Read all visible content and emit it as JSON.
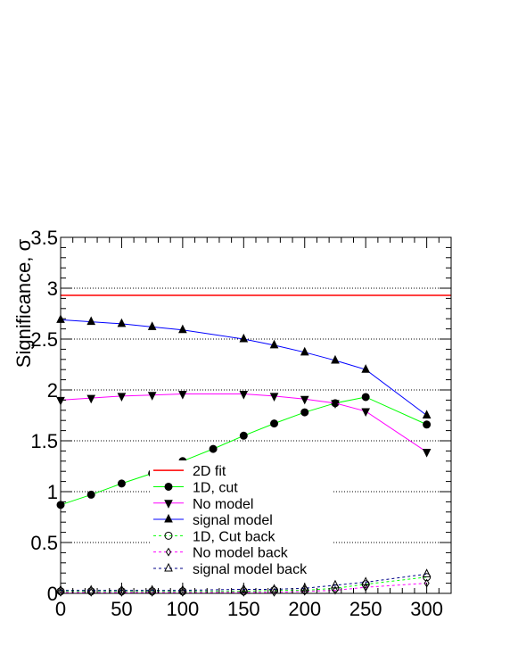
{
  "chart_data": {
    "type": "line",
    "title": "",
    "xlabel": "",
    "ylabel": "Significance, σ",
    "xlim": [
      0,
      320
    ],
    "ylim": [
      0,
      3.5
    ],
    "x_ticks": [
      0,
      50,
      100,
      150,
      200,
      250,
      300
    ],
    "y_ticks": [
      0,
      0.5,
      1,
      1.5,
      2,
      2.5,
      3,
      3.5
    ],
    "x_tick_labels": [
      "0",
      "50",
      "100",
      "150",
      "200",
      "250",
      "300"
    ],
    "y_tick_labels": [
      "0",
      "0.5",
      "1",
      "1.5",
      "2",
      "2.5",
      "3",
      "3.5"
    ],
    "grid": "horizontal dotted",
    "legend_position": "bottom-center",
    "series": [
      {
        "name": "2D fit",
        "color": "#ff0000",
        "style": "solid",
        "marker": "none",
        "x": [
          0,
          320
        ],
        "y": [
          2.93,
          2.93
        ]
      },
      {
        "name": "1D, cut",
        "color": "#00ff00",
        "style": "solid",
        "marker": "filled-circle",
        "x": [
          0,
          25,
          50,
          75,
          100,
          125,
          150,
          175,
          200,
          225,
          250,
          300
        ],
        "y": [
          0.87,
          0.97,
          1.08,
          1.18,
          1.3,
          1.42,
          1.55,
          1.67,
          1.78,
          1.87,
          1.93,
          1.66
        ]
      },
      {
        "name": "No model",
        "color": "#ff00ff",
        "style": "solid",
        "marker": "filled-triangle-down",
        "x": [
          0,
          25,
          50,
          75,
          100,
          150,
          175,
          200,
          225,
          250,
          300
        ],
        "y": [
          1.9,
          1.92,
          1.94,
          1.95,
          1.96,
          1.96,
          1.94,
          1.91,
          1.87,
          1.79,
          1.39
        ]
      },
      {
        "name": "signal model",
        "color": "#0000ff",
        "style": "solid",
        "marker": "filled-triangle-up",
        "x": [
          0,
          25,
          50,
          75,
          100,
          150,
          175,
          200,
          225,
          250,
          300
        ],
        "y": [
          2.69,
          2.67,
          2.65,
          2.62,
          2.59,
          2.5,
          2.44,
          2.37,
          2.29,
          2.2,
          1.75
        ]
      },
      {
        "name": "1D, Cut back",
        "color": "#00ff00",
        "style": "dashed",
        "marker": "open-circle",
        "x": [
          0,
          25,
          50,
          75,
          100,
          150,
          175,
          200,
          225,
          250,
          300
        ],
        "y": [
          0.02,
          0.02,
          0.02,
          0.02,
          0.02,
          0.02,
          0.03,
          0.03,
          0.05,
          0.09,
          0.16
        ]
      },
      {
        "name": "No model back",
        "color": "#ff00ff",
        "style": "dashed",
        "marker": "open-diamond",
        "x": [
          0,
          25,
          50,
          75,
          100,
          150,
          175,
          200,
          225,
          250,
          300
        ],
        "y": [
          0.01,
          0.01,
          0.01,
          0.01,
          0.01,
          0.01,
          0.01,
          0.02,
          0.03,
          0.06,
          0.1
        ]
      },
      {
        "name": "signal model back",
        "color": "#000088",
        "style": "dashed",
        "marker": "open-triangle-up",
        "x": [
          0,
          25,
          50,
          75,
          100,
          150,
          175,
          200,
          225,
          250,
          300
        ],
        "y": [
          0.03,
          0.03,
          0.03,
          0.03,
          0.03,
          0.04,
          0.04,
          0.05,
          0.08,
          0.11,
          0.19
        ]
      }
    ]
  }
}
